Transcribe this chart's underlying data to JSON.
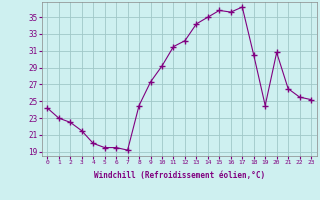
{
  "x": [
    0,
    1,
    2,
    3,
    4,
    5,
    6,
    7,
    8,
    9,
    10,
    11,
    12,
    13,
    14,
    15,
    16,
    17,
    18,
    19,
    20,
    21,
    22,
    23
  ],
  "y": [
    24.2,
    23.0,
    22.5,
    21.5,
    20.0,
    19.5,
    19.5,
    19.2,
    24.5,
    27.3,
    29.2,
    31.5,
    32.2,
    34.2,
    35.0,
    35.8,
    35.6,
    36.2,
    30.5,
    24.5,
    30.8,
    26.5,
    25.5,
    25.2
  ],
  "line_color": "#800080",
  "marker": "+",
  "marker_size": 4,
  "bg_color": "#cef0f0",
  "grid_color": "#a0c8c8",
  "xlabel": "Windchill (Refroidissement éolien,°C)",
  "xlabel_color": "#800080",
  "tick_color": "#800080",
  "ylim": [
    18.5,
    36.8
  ],
  "yticks": [
    19,
    21,
    23,
    25,
    27,
    29,
    31,
    33,
    35
  ],
  "xlim": [
    -0.5,
    23.5
  ],
  "xticks": [
    0,
    1,
    2,
    3,
    4,
    5,
    6,
    7,
    8,
    9,
    10,
    11,
    12,
    13,
    14,
    15,
    16,
    17,
    18,
    19,
    20,
    21,
    22,
    23
  ]
}
